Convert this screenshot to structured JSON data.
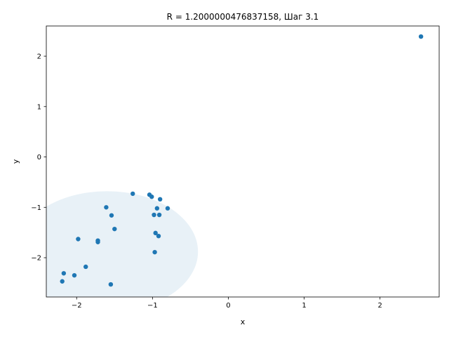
{
  "chart_data": {
    "type": "scatter",
    "title": "R = 1.2000000476837158, Шаг 3.1",
    "xlabel": "x",
    "ylabel": "y",
    "xlim": [
      -2.4,
      2.78
    ],
    "ylim": [
      -2.78,
      2.6
    ],
    "xticks": [
      -2,
      -1,
      0,
      1,
      2
    ],
    "yticks": [
      -2,
      -1,
      0,
      1,
      2
    ],
    "xtick_labels": [
      "−2",
      "−1",
      "0",
      "1",
      "2"
    ],
    "ytick_labels": [
      "−2",
      "−1",
      "0",
      "1",
      "2"
    ],
    "grid": false,
    "point_color": "#1f77b4",
    "region_color": "#1f77b4",
    "circle": {
      "cx": -1.6,
      "cy": -1.88,
      "r": 1.2
    },
    "points": [
      {
        "x": 2.54,
        "y": 2.39
      },
      {
        "x": -1.26,
        "y": -0.73
      },
      {
        "x": -1.04,
        "y": -0.75
      },
      {
        "x": -1.01,
        "y": -0.79
      },
      {
        "x": -0.9,
        "y": -0.84
      },
      {
        "x": -1.61,
        "y": -1.0
      },
      {
        "x": -0.94,
        "y": -1.02
      },
      {
        "x": -0.8,
        "y": -1.02
      },
      {
        "x": -1.54,
        "y": -1.16
      },
      {
        "x": -0.98,
        "y": -1.15
      },
      {
        "x": -0.91,
        "y": -1.15
      },
      {
        "x": -1.5,
        "y": -1.43
      },
      {
        "x": -0.96,
        "y": -1.51
      },
      {
        "x": -0.92,
        "y": -1.57
      },
      {
        "x": -1.98,
        "y": -1.63
      },
      {
        "x": -1.72,
        "y": -1.66
      },
      {
        "x": -1.72,
        "y": -1.69
      },
      {
        "x": -0.97,
        "y": -1.89
      },
      {
        "x": -1.88,
        "y": -2.18
      },
      {
        "x": -2.17,
        "y": -2.31
      },
      {
        "x": -2.03,
        "y": -2.35
      },
      {
        "x": -2.19,
        "y": -2.47
      },
      {
        "x": -1.55,
        "y": -2.53
      }
    ]
  }
}
